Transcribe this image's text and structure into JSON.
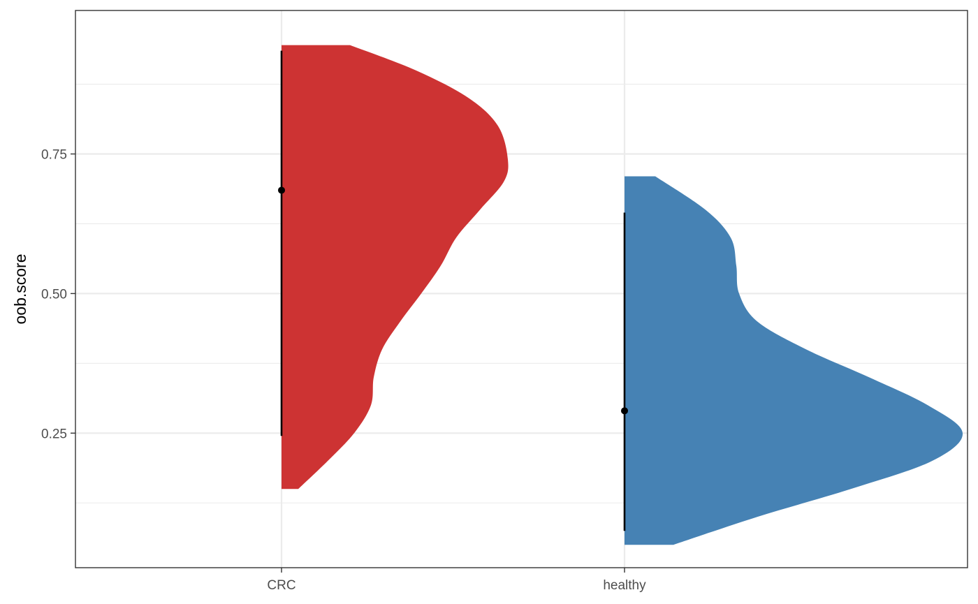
{
  "chart_data": {
    "type": "half-violin",
    "title": "",
    "xlabel": "",
    "ylabel": "oob.score",
    "ylim": [
      0.009,
      1.007
    ],
    "yticks": [
      0.25,
      0.5,
      0.75
    ],
    "yticklabels": [
      "0.25",
      "0.50",
      "0.75"
    ],
    "grid": true,
    "legend": "none",
    "categories": [
      "CRC",
      "healthy"
    ],
    "series": [
      {
        "category": "CRC",
        "color": "#CD3333",
        "ymin": 0.15,
        "ymax": 0.945,
        "density_half_width": [
          [
            0.15,
            0.12
          ],
          [
            0.2,
            0.33
          ],
          [
            0.25,
            0.52
          ],
          [
            0.3,
            0.64
          ],
          [
            0.35,
            0.66
          ],
          [
            0.4,
            0.72
          ],
          [
            0.45,
            0.85
          ],
          [
            0.5,
            1.0
          ],
          [
            0.55,
            1.14
          ],
          [
            0.6,
            1.25
          ],
          [
            0.65,
            1.42
          ],
          [
            0.7,
            1.59
          ],
          [
            0.74,
            1.62
          ],
          [
            0.8,
            1.55
          ],
          [
            0.85,
            1.34
          ],
          [
            0.9,
            0.96
          ],
          [
            0.945,
            0.49
          ]
        ],
        "summary": {
          "point": 0.685,
          "line_low": 0.245,
          "line_high": 0.935
        }
      },
      {
        "category": "healthy",
        "color": "#4682B4",
        "ymin": 0.05,
        "ymax": 0.71,
        "density_half_width": [
          [
            0.05,
            0.35
          ],
          [
            0.1,
            0.95
          ],
          [
            0.15,
            1.62
          ],
          [
            0.2,
            2.2
          ],
          [
            0.25,
            2.42
          ],
          [
            0.3,
            2.17
          ],
          [
            0.35,
            1.75
          ],
          [
            0.4,
            1.3
          ],
          [
            0.45,
            0.95
          ],
          [
            0.5,
            0.82
          ],
          [
            0.55,
            0.8
          ],
          [
            0.6,
            0.76
          ],
          [
            0.65,
            0.58
          ],
          [
            0.71,
            0.22
          ]
        ],
        "summary": {
          "point": 0.29,
          "line_low": 0.075,
          "line_high": 0.645
        }
      }
    ]
  }
}
